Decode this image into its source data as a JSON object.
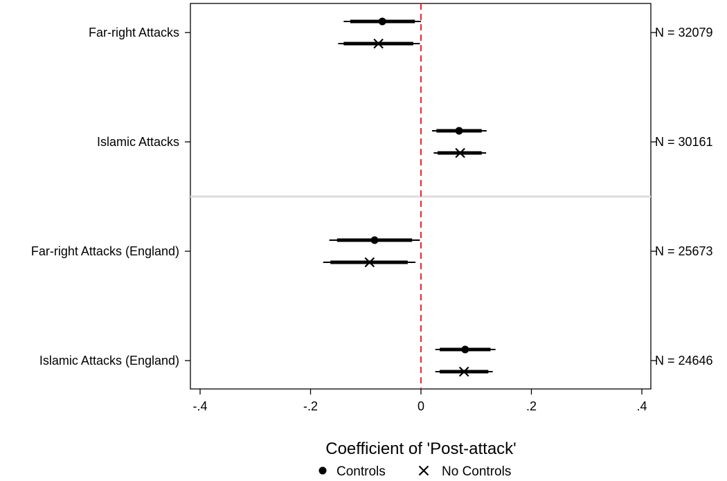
{
  "chart_data": {
    "type": "scatter",
    "subtype": "coefficient-plot",
    "xlabel": "Coefficient of 'Post-attack'",
    "xlim": [
      -0.42,
      0.42
    ],
    "x_ticks": [
      {
        "value": -0.4,
        "label": "-.4"
      },
      {
        "value": -0.2,
        "label": "-.2"
      },
      {
        "value": 0,
        "label": "0"
      },
      {
        "value": 0.2,
        "label": ".2"
      },
      {
        "value": 0.4,
        "label": ".4"
      }
    ],
    "reference_line": {
      "x": 0,
      "style": "dashed",
      "color": "#e8262b"
    },
    "separator_after_group": 1,
    "groups": [
      {
        "label": "Far-right Attacks",
        "n_label": "N = 32079"
      },
      {
        "label": "Islamic Attacks",
        "n_label": "N = 30161"
      },
      {
        "label": "Far-right Attacks (England)",
        "n_label": "N = 25673"
      },
      {
        "label": "Islamic Attacks (England)",
        "n_label": "N = 24646"
      }
    ],
    "series": [
      {
        "name": "Controls",
        "marker": "circle",
        "points": [
          {
            "coef": -0.07,
            "ci90": [
              -0.128,
              -0.011
            ],
            "ci95": [
              -0.14,
              0.0
            ]
          },
          {
            "coef": 0.069,
            "ci90": [
              0.028,
              0.11
            ],
            "ci95": [
              0.02,
              0.119
            ]
          },
          {
            "coef": -0.084,
            "ci90": [
              -0.152,
              -0.016
            ],
            "ci95": [
              -0.166,
              -0.002
            ]
          },
          {
            "coef": 0.08,
            "ci90": [
              0.034,
              0.126
            ],
            "ci95": [
              0.026,
              0.135
            ]
          }
        ]
      },
      {
        "name": "No Controls",
        "marker": "x",
        "points": [
          {
            "coef": -0.077,
            "ci90": [
              -0.14,
              -0.014
            ],
            "ci95": [
              -0.15,
              -0.002
            ]
          },
          {
            "coef": 0.071,
            "ci90": [
              0.03,
              0.11
            ],
            "ci95": [
              0.023,
              0.118
            ]
          },
          {
            "coef": -0.093,
            "ci90": [
              -0.164,
              -0.024
            ],
            "ci95": [
              -0.177,
              -0.01
            ]
          },
          {
            "coef": 0.078,
            "ci90": [
              0.034,
              0.122
            ],
            "ci95": [
              0.026,
              0.13
            ]
          }
        ]
      }
    ],
    "legend": {
      "position": "bottom",
      "entries": [
        {
          "label": "Controls",
          "marker": "circle"
        },
        {
          "label": "No Controls",
          "marker": "x"
        }
      ]
    },
    "colors": {
      "marker": "#000000",
      "refline": "#e8262b",
      "separator": "#dcdcdc",
      "frame": "#000000"
    }
  }
}
